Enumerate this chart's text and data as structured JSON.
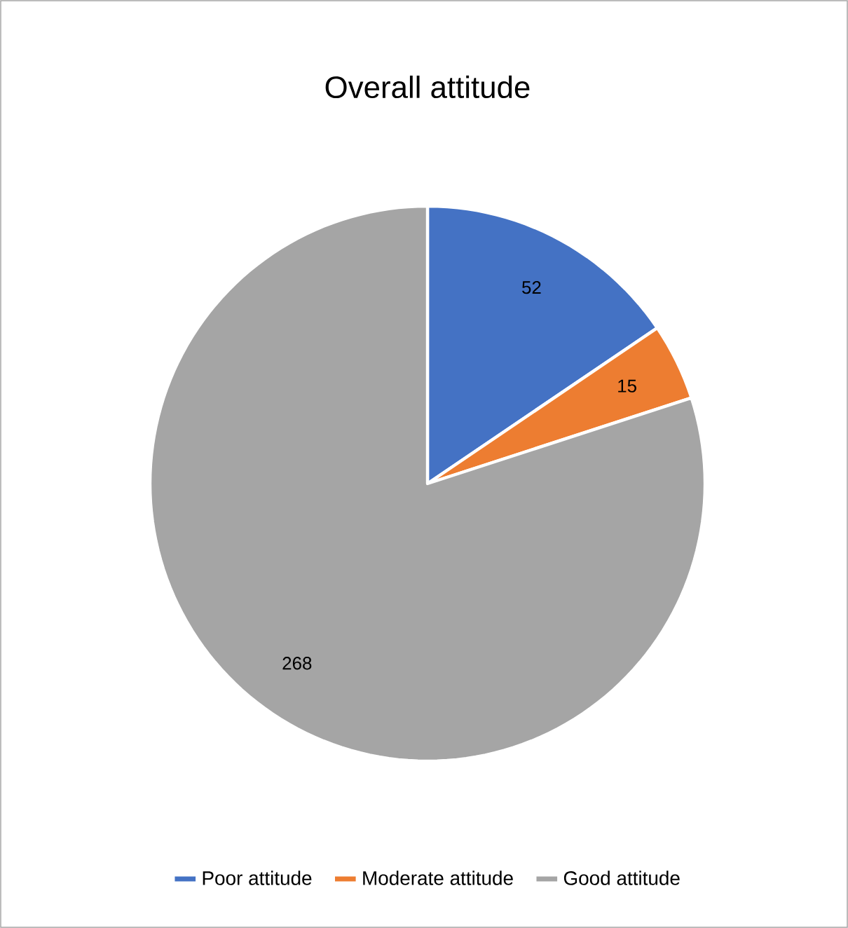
{
  "chart_data": {
    "type": "pie",
    "title": "Overall attitude",
    "categories": [
      "Poor attitude",
      "Moderate attitude",
      "Good attitude"
    ],
    "values": [
      52,
      15,
      268
    ],
    "colors": [
      "#4472c4",
      "#ed7d31",
      "#a5a5a5"
    ],
    "data_labels": true,
    "legend": "bottom"
  }
}
